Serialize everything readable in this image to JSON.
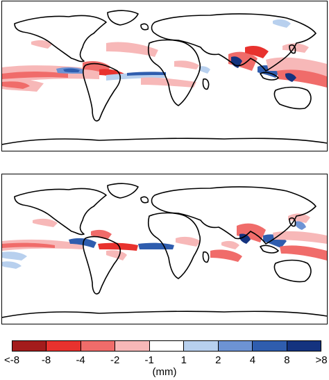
{
  "panels": [
    {
      "id": "top"
    },
    {
      "id": "bottom"
    }
  ],
  "legend": {
    "unit": "(mm)",
    "tick_labels": [
      "<-8",
      "-8",
      "-4",
      "-2",
      "-1",
      "1",
      "2",
      "4",
      "8",
      ">8"
    ],
    "colors": [
      "#a31c1c",
      "#e8322e",
      "#f06c6a",
      "#f7b8b8",
      "#ffffff",
      "#b8d0ee",
      "#6d93d4",
      "#2f5dae",
      "#14337f"
    ]
  }
}
